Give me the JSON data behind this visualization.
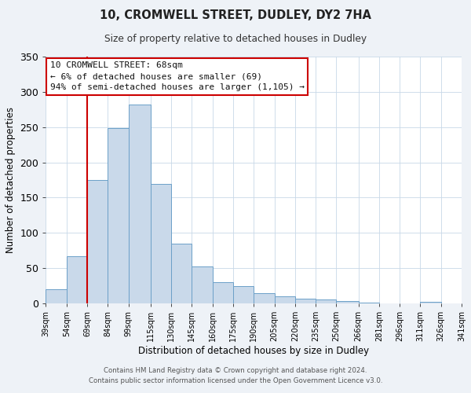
{
  "title": "10, CROMWELL STREET, DUDLEY, DY2 7HA",
  "subtitle": "Size of property relative to detached houses in Dudley",
  "xlabel": "Distribution of detached houses by size in Dudley",
  "ylabel": "Number of detached properties",
  "bar_left_edges": [
    39,
    54,
    69,
    84,
    99,
    115,
    130,
    145,
    160,
    175,
    190,
    205,
    220,
    235,
    250,
    266,
    281,
    296,
    311,
    326
  ],
  "bar_widths": [
    15,
    15,
    15,
    15,
    16,
    15,
    15,
    15,
    15,
    15,
    15,
    15,
    15,
    15,
    16,
    15,
    15,
    15,
    15,
    15
  ],
  "bar_heights": [
    20,
    67,
    175,
    248,
    282,
    170,
    85,
    52,
    30,
    25,
    15,
    10,
    7,
    6,
    3,
    1,
    0,
    0,
    2,
    0
  ],
  "bar_color": "#c9d9ea",
  "bar_edge_color": "#6ca0c8",
  "tick_labels": [
    "39sqm",
    "54sqm",
    "69sqm",
    "84sqm",
    "99sqm",
    "115sqm",
    "130sqm",
    "145sqm",
    "160sqm",
    "175sqm",
    "190sqm",
    "205sqm",
    "220sqm",
    "235sqm",
    "250sqm",
    "266sqm",
    "281sqm",
    "296sqm",
    "311sqm",
    "326sqm",
    "341sqm"
  ],
  "ylim": [
    0,
    350
  ],
  "yticks": [
    0,
    50,
    100,
    150,
    200,
    250,
    300,
    350
  ],
  "property_line_x": 69,
  "property_line_color": "#cc0000",
  "annotation_box_text": "10 CROMWELL STREET: 68sqm\n← 6% of detached houses are smaller (69)\n94% of semi-detached houses are larger (1,105) →",
  "footer_line1": "Contains HM Land Registry data © Crown copyright and database right 2024.",
  "footer_line2": "Contains public sector information licensed under the Open Government Licence v3.0.",
  "background_color": "#eef2f7",
  "plot_bg_color": "#ffffff",
  "grid_color": "#c8d8e8"
}
